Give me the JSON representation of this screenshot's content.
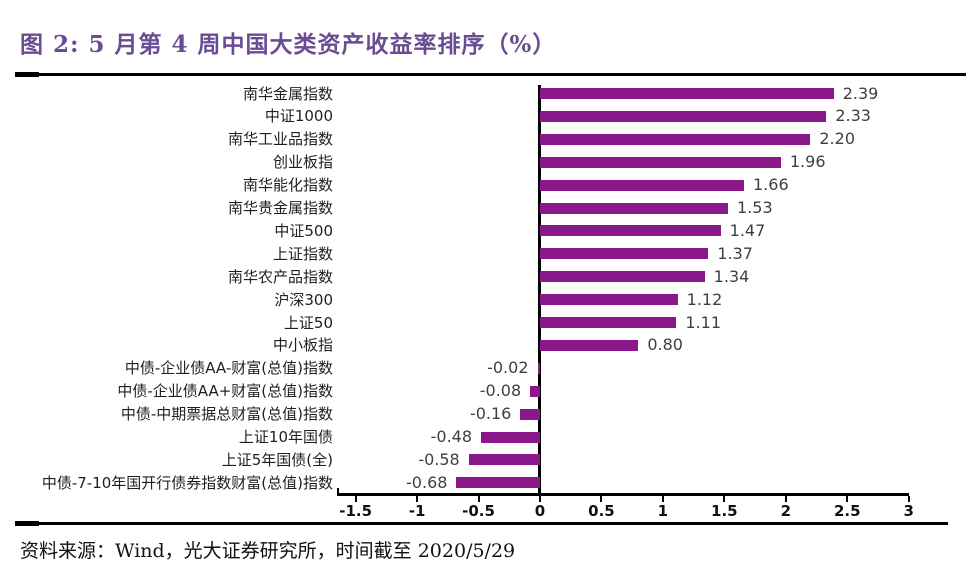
{
  "title": "图 2: 5 月第 4 周中国大类资产收益率排序（%）",
  "source_note": "资料来源：Wind，光大证券研究所，时间截至 2020/5/29",
  "colors": {
    "bar": "#8A188A",
    "title": "#6A4C93",
    "axis": "#000000",
    "value_label": "#3F3F3F",
    "category_label": "#1F1F1F",
    "tick_label": "#111111"
  },
  "chart_data": {
    "type": "bar",
    "orientation": "horizontal",
    "title": "图 2: 5 月第 4 周中国大类资产收益率排序（%）",
    "unit": "%",
    "categories": [
      "南华金属指数",
      "中证1000",
      "南华工业品指数",
      "创业板指",
      "南华能化指数",
      "南华贵金属指数",
      "中证500",
      "上证指数",
      "南华农产品指数",
      "沪深300",
      "上证50",
      "中小板指",
      "中债-企业债AA-财富(总值)指数",
      "中债-企业债AA+财富(总值)指数",
      "中债-中期票据总财富(总值)指数",
      "上证10年国债",
      "上证5年国债(全)",
      "中债-7-10年国开行债券指数财富(总值)指数"
    ],
    "values": [
      2.39,
      2.33,
      2.2,
      1.96,
      1.66,
      1.53,
      1.47,
      1.37,
      1.34,
      1.12,
      1.11,
      0.8,
      -0.02,
      -0.08,
      -0.16,
      -0.48,
      -0.58,
      -0.68
    ],
    "value_labels": [
      "2.39",
      "2.33",
      "2.20",
      "1.96",
      "1.66",
      "1.53",
      "1.47",
      "1.37",
      "1.34",
      "1.12",
      "1.11",
      "0.80",
      "-0.02",
      "-0.08",
      "-0.16",
      "-0.48",
      "-0.58",
      "-0.68"
    ],
    "xticks": [
      -1.5,
      -1,
      -0.5,
      0,
      0.5,
      1,
      1.5,
      2,
      2.5,
      3
    ],
    "xtick_labels": [
      "-1.5",
      "-1",
      "-0.5",
      "0",
      "0.5",
      "1",
      "1.5",
      "2",
      "2.5",
      "3"
    ],
    "xlim": [
      -1.65,
      3.0
    ],
    "grid": false,
    "legend": null
  }
}
